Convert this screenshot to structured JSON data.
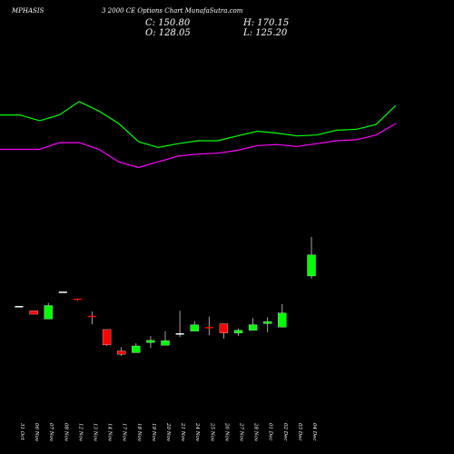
{
  "header": {
    "symbol": "MPHASIS",
    "subtitle": "3 2000  CE Options  Chart MunafaSutra.com",
    "close_label": "C: 150.80",
    "high_label": "H: 170.15",
    "open_label": "O: 128.05",
    "low_label": "L: 125.20"
  },
  "chart_data": {
    "type": "candlestick",
    "title": "",
    "categories": [
      "31 Oct",
      "06 Nov",
      "07 Nov",
      "08 Nov",
      "12 Nov",
      "13 Nov",
      "14 Nov",
      "17 Nov",
      "18 Nov",
      "19 Nov",
      "20 Nov",
      "21 Nov",
      "24 Nov",
      "25 Nov",
      "26 Nov",
      "27 Nov",
      "28 Nov",
      "01 Dec",
      "02 Dec",
      "03 Dec",
      "04 Dec"
    ],
    "candles": [
      {
        "open": 95.0,
        "close": 95.0,
        "high": 95.2,
        "low": 94.8,
        "color": "green"
      },
      {
        "open": 90.5,
        "close": 86.9,
        "high": 90.5,
        "low": 86.9,
        "color": "red"
      },
      {
        "open": 81.7,
        "close": 96.2,
        "high": 99.0,
        "low": 81.7,
        "color": "green"
      },
      {
        "open": 110.5,
        "close": 110.5,
        "high": 111.0,
        "low": 110.0,
        "color": "green"
      },
      {
        "open": 103.0,
        "close": 101.6,
        "high": 103.0,
        "low": 101.6,
        "color": "red"
      },
      {
        "open": 84.5,
        "close": 83.4,
        "high": 89.7,
        "low": 76.0,
        "color": "red"
      },
      {
        "open": 70.4,
        "close": 53.8,
        "high": 70.4,
        "low": 53.0,
        "color": "red"
      },
      {
        "open": 47.3,
        "close": 43.7,
        "high": 51.4,
        "low": 42.0,
        "color": "red"
      },
      {
        "open": 45.5,
        "close": 52.7,
        "high": 55.5,
        "low": 45.5,
        "color": "green"
      },
      {
        "open": 58.7,
        "close": 56.4,
        "high": 63.3,
        "low": 50.5,
        "color": "green"
      },
      {
        "open": 53.4,
        "close": 58.4,
        "high": 68.5,
        "low": 53.4,
        "color": "green"
      },
      {
        "open": 64.1,
        "close": 65.6,
        "high": 90.6,
        "low": 62.3,
        "color": "green"
      },
      {
        "open": 68.7,
        "close": 75.5,
        "high": 79.6,
        "low": 68.7,
        "color": "green"
      },
      {
        "open": 72.4,
        "close": 70.6,
        "high": 84.3,
        "low": 64.1,
        "color": "red"
      },
      {
        "open": 76.6,
        "close": 66.7,
        "high": 76.6,
        "low": 60.6,
        "color": "red"
      },
      {
        "open": 66.6,
        "close": 69.5,
        "high": 71.4,
        "low": 63.6,
        "color": "green"
      },
      {
        "open": 69.5,
        "close": 75.6,
        "high": 82.6,
        "low": 69.5,
        "color": "green"
      },
      {
        "open": 76.8,
        "close": 78.8,
        "high": 83.6,
        "low": 67.5,
        "color": "green"
      },
      {
        "open": 73.0,
        "close": 88.2,
        "high": 97.8,
        "low": 73.0,
        "color": "green"
      },
      {
        "open": 128.05,
        "close": 150.8,
        "high": 170.15,
        "low": 125.2,
        "color": "green"
      }
    ],
    "candle_x_index": [
      0,
      1,
      2,
      3,
      4,
      5,
      6,
      7,
      8,
      9,
      10,
      11,
      12,
      13,
      14,
      15,
      16,
      17,
      18,
      20
    ],
    "ylim": [
      40,
      172
    ],
    "upper_band": [
      252,
      252,
      246,
      252,
      266,
      256,
      243,
      224,
      218,
      222,
      225,
      225,
      230,
      235,
      233,
      230,
      231,
      236,
      237,
      242,
      262
    ],
    "lower_band": [
      216,
      216,
      216,
      223,
      223,
      216,
      203,
      197,
      203,
      209,
      211,
      212,
      215,
      220,
      221,
      219,
      222,
      225,
      226,
      231,
      243
    ],
    "band_ylim": [
      150,
      300
    ],
    "grid": false,
    "colors": {
      "up": "#00ff00",
      "down": "#ff0000",
      "upper_band": "#00ff00",
      "lower_band": "#ff00ff",
      "background": "#000000",
      "doji": "#ffffff"
    }
  }
}
